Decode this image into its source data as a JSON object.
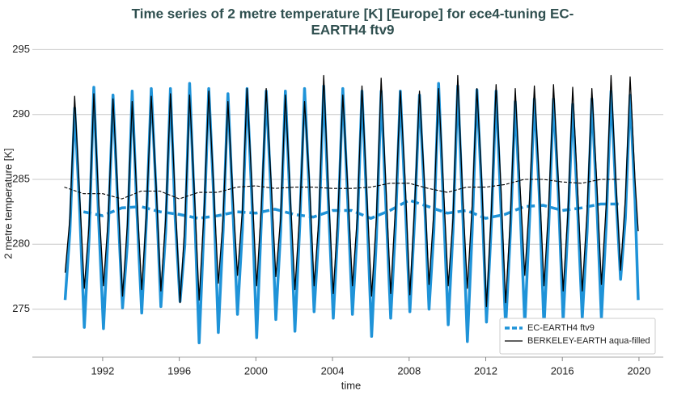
{
  "chart_data": {
    "type": "line",
    "title": [
      "Time series of 2 metre temperature [K] [Europe] for ece4-tuning EC-",
      "EARTH4 ftv9"
    ],
    "x_label": "time",
    "y_label": "2 metre temperature [K]",
    "xlim": [
      1988.33,
      2021.27
    ],
    "ylim": [
      271.3,
      295.4
    ],
    "xticks": [
      1992,
      1996,
      2000,
      2004,
      2008,
      2012,
      2016,
      2020
    ],
    "yticks": [
      275,
      280,
      285,
      290,
      295
    ],
    "grid": true,
    "legend": "lower right",
    "x": [
      1990.04,
      1990.29,
      1990.54,
      1990.79,
      1991.04,
      1991.29,
      1991.54,
      1991.79,
      1992.04,
      1992.29,
      1992.54,
      1992.79,
      1993.04,
      1993.29,
      1993.54,
      1993.79,
      1994.04,
      1994.29,
      1994.54,
      1994.79,
      1995.04,
      1995.29,
      1995.54,
      1995.79,
      1996.04,
      1996.29,
      1996.54,
      1996.79,
      1997.04,
      1997.29,
      1997.54,
      1997.79,
      1998.04,
      1998.29,
      1998.54,
      1998.79,
      1999.04,
      1999.29,
      1999.54,
      1999.79,
      2000.04,
      2000.29,
      2000.54,
      2000.79,
      2001.04,
      2001.29,
      2001.54,
      2001.79,
      2002.04,
      2002.29,
      2002.54,
      2002.79,
      2003.04,
      2003.29,
      2003.54,
      2003.79,
      2004.04,
      2004.29,
      2004.54,
      2004.79,
      2005.04,
      2005.29,
      2005.54,
      2005.79,
      2006.04,
      2006.29,
      2006.54,
      2006.79,
      2007.04,
      2007.29,
      2007.54,
      2007.79,
      2008.04,
      2008.29,
      2008.54,
      2008.79,
      2009.04,
      2009.29,
      2009.54,
      2009.79,
      2010.04,
      2010.29,
      2010.54,
      2010.79,
      2011.04,
      2011.29,
      2011.54,
      2011.79,
      2012.04,
      2012.29,
      2012.54,
      2012.79,
      2013.04,
      2013.29,
      2013.54,
      2013.79,
      2014.04,
      2014.29,
      2014.54,
      2014.79,
      2015.04,
      2015.29,
      2015.54,
      2015.79,
      2016.04,
      2016.29,
      2016.54,
      2016.79,
      2017.04,
      2017.29,
      2017.54,
      2017.79,
      2018.04,
      2018.29,
      2018.54,
      2018.79,
      2019.04,
      2019.29,
      2019.54,
      2019.79,
      2019.96
    ],
    "series": [
      {
        "color": "#1f93d8",
        "width": 3.5,
        "values": [
          275.7,
          281,
          290.5,
          283,
          273.6,
          280.5,
          292.1,
          282,
          273.5,
          281,
          291.5,
          283,
          275.1,
          280,
          291.8,
          282.5,
          274.7,
          282,
          292.0,
          284,
          275.2,
          281,
          292.0,
          282,
          275.6,
          280,
          292.4,
          283,
          272.4,
          281.5,
          292.0,
          284,
          273.2,
          281,
          291.6,
          283,
          274.6,
          281,
          292.0,
          283.5,
          272.8,
          282,
          291.8,
          284,
          274.2,
          281,
          291.8,
          283,
          273.3,
          281.5,
          292.0,
          284,
          274.8,
          281,
          292.2,
          283,
          274.3,
          281.5,
          292.0,
          283.5,
          274.6,
          281,
          291.8,
          283,
          272.9,
          280.5,
          291.8,
          283,
          274.3,
          281.5,
          291.8,
          283.5,
          274.8,
          282,
          291.5,
          284,
          275.0,
          281,
          292.4,
          283,
          273.8,
          281,
          292.2,
          283,
          272.5,
          281,
          291.9,
          284,
          274.0,
          281.5,
          291.8,
          283,
          273.6,
          281,
          291.0,
          283,
          273.8,
          282,
          291.2,
          284,
          273.6,
          281.5,
          291.2,
          284,
          274.1,
          281.5,
          290.8,
          283,
          274.3,
          281,
          291.2,
          283.5,
          274.3,
          281.5,
          291.8,
          284,
          277.3,
          282,
          291.5,
          283.5,
          275.7
        ]
      },
      {
        "name": "EC-EARTH4 ftv9",
        "color": "#1f93d8",
        "width": 3.5,
        "dashed": true,
        "x": [
          1991,
          1992,
          1993,
          1994,
          1995,
          1996,
          1997,
          1998,
          1999,
          2000,
          2001,
          2002,
          2003,
          2004,
          2005,
          2006,
          2007,
          2008,
          2009,
          2010,
          2011,
          2012,
          2013,
          2014,
          2015,
          2016,
          2017,
          2018,
          2019
        ],
        "values": [
          282.5,
          282.2,
          282.8,
          282.9,
          282.5,
          282.3,
          282.0,
          282.2,
          282.5,
          282.4,
          282.7,
          282.3,
          282.1,
          282.6,
          282.6,
          282.0,
          282.6,
          283.4,
          282.9,
          282.4,
          282.6,
          282.0,
          282.3,
          282.9,
          283.0,
          282.6,
          282.8,
          283.1,
          283.1
        ]
      },
      {
        "name": "BERKELEY-EARTH aqua-filled",
        "color": "#000000",
        "width": 1.3,
        "values": [
          277.8,
          282,
          291.4,
          284,
          276.6,
          281.5,
          291.6,
          283.5,
          276.8,
          282,
          291.2,
          284,
          276.0,
          281.5,
          291.0,
          283.5,
          276.5,
          282.5,
          291.4,
          284.5,
          276.4,
          282,
          291.6,
          283.5,
          275.5,
          281.5,
          291.5,
          284,
          275.7,
          282.5,
          291.8,
          284.5,
          277.0,
          282,
          291.0,
          284,
          277.6,
          282.5,
          292.0,
          284.5,
          276.8,
          283,
          292.0,
          285,
          277.5,
          282,
          291.5,
          284,
          276.5,
          282.5,
          291.0,
          285,
          276.8,
          282,
          293.0,
          284,
          276.2,
          282.5,
          291.5,
          284.5,
          276.8,
          282,
          292.2,
          284,
          276.0,
          282,
          292.8,
          284.5,
          276.2,
          283,
          291.8,
          285,
          276.1,
          283,
          291.8,
          285,
          276.9,
          282.5,
          292.0,
          284.5,
          276.8,
          282,
          293.0,
          284,
          276.6,
          283,
          292.0,
          285,
          275.2,
          282.5,
          292.3,
          284.5,
          275.5,
          282,
          292.0,
          284.5,
          277.6,
          283.5,
          292.2,
          285,
          276.8,
          283,
          292.3,
          285,
          276.4,
          282.5,
          292.1,
          284.5,
          276.4,
          282.5,
          292.0,
          285,
          276.9,
          283,
          293.0,
          285,
          278.0,
          283.5,
          292.9,
          285,
          281.0
        ]
      },
      {
        "color": "#000000",
        "width": 1.1,
        "dashed": true,
        "x": [
          1990,
          1991,
          1992,
          1993,
          1994,
          1995,
          1996,
          1997,
          1998,
          1999,
          2000,
          2001,
          2002,
          2003,
          2004,
          2005,
          2006,
          2007,
          2008,
          2009,
          2010,
          2011,
          2012,
          2013,
          2014,
          2015,
          2016,
          2017,
          2018,
          2019
        ],
        "values": [
          284.4,
          283.9,
          283.9,
          283.5,
          284.1,
          284.1,
          283.5,
          284.0,
          284.0,
          284.4,
          284.5,
          284.3,
          284.4,
          284.4,
          284.3,
          284.3,
          284.4,
          284.7,
          284.7,
          284.3,
          284.0,
          284.4,
          284.4,
          284.6,
          285.0,
          285.0,
          284.8,
          284.7,
          285.0,
          285.0
        ]
      }
    ]
  }
}
